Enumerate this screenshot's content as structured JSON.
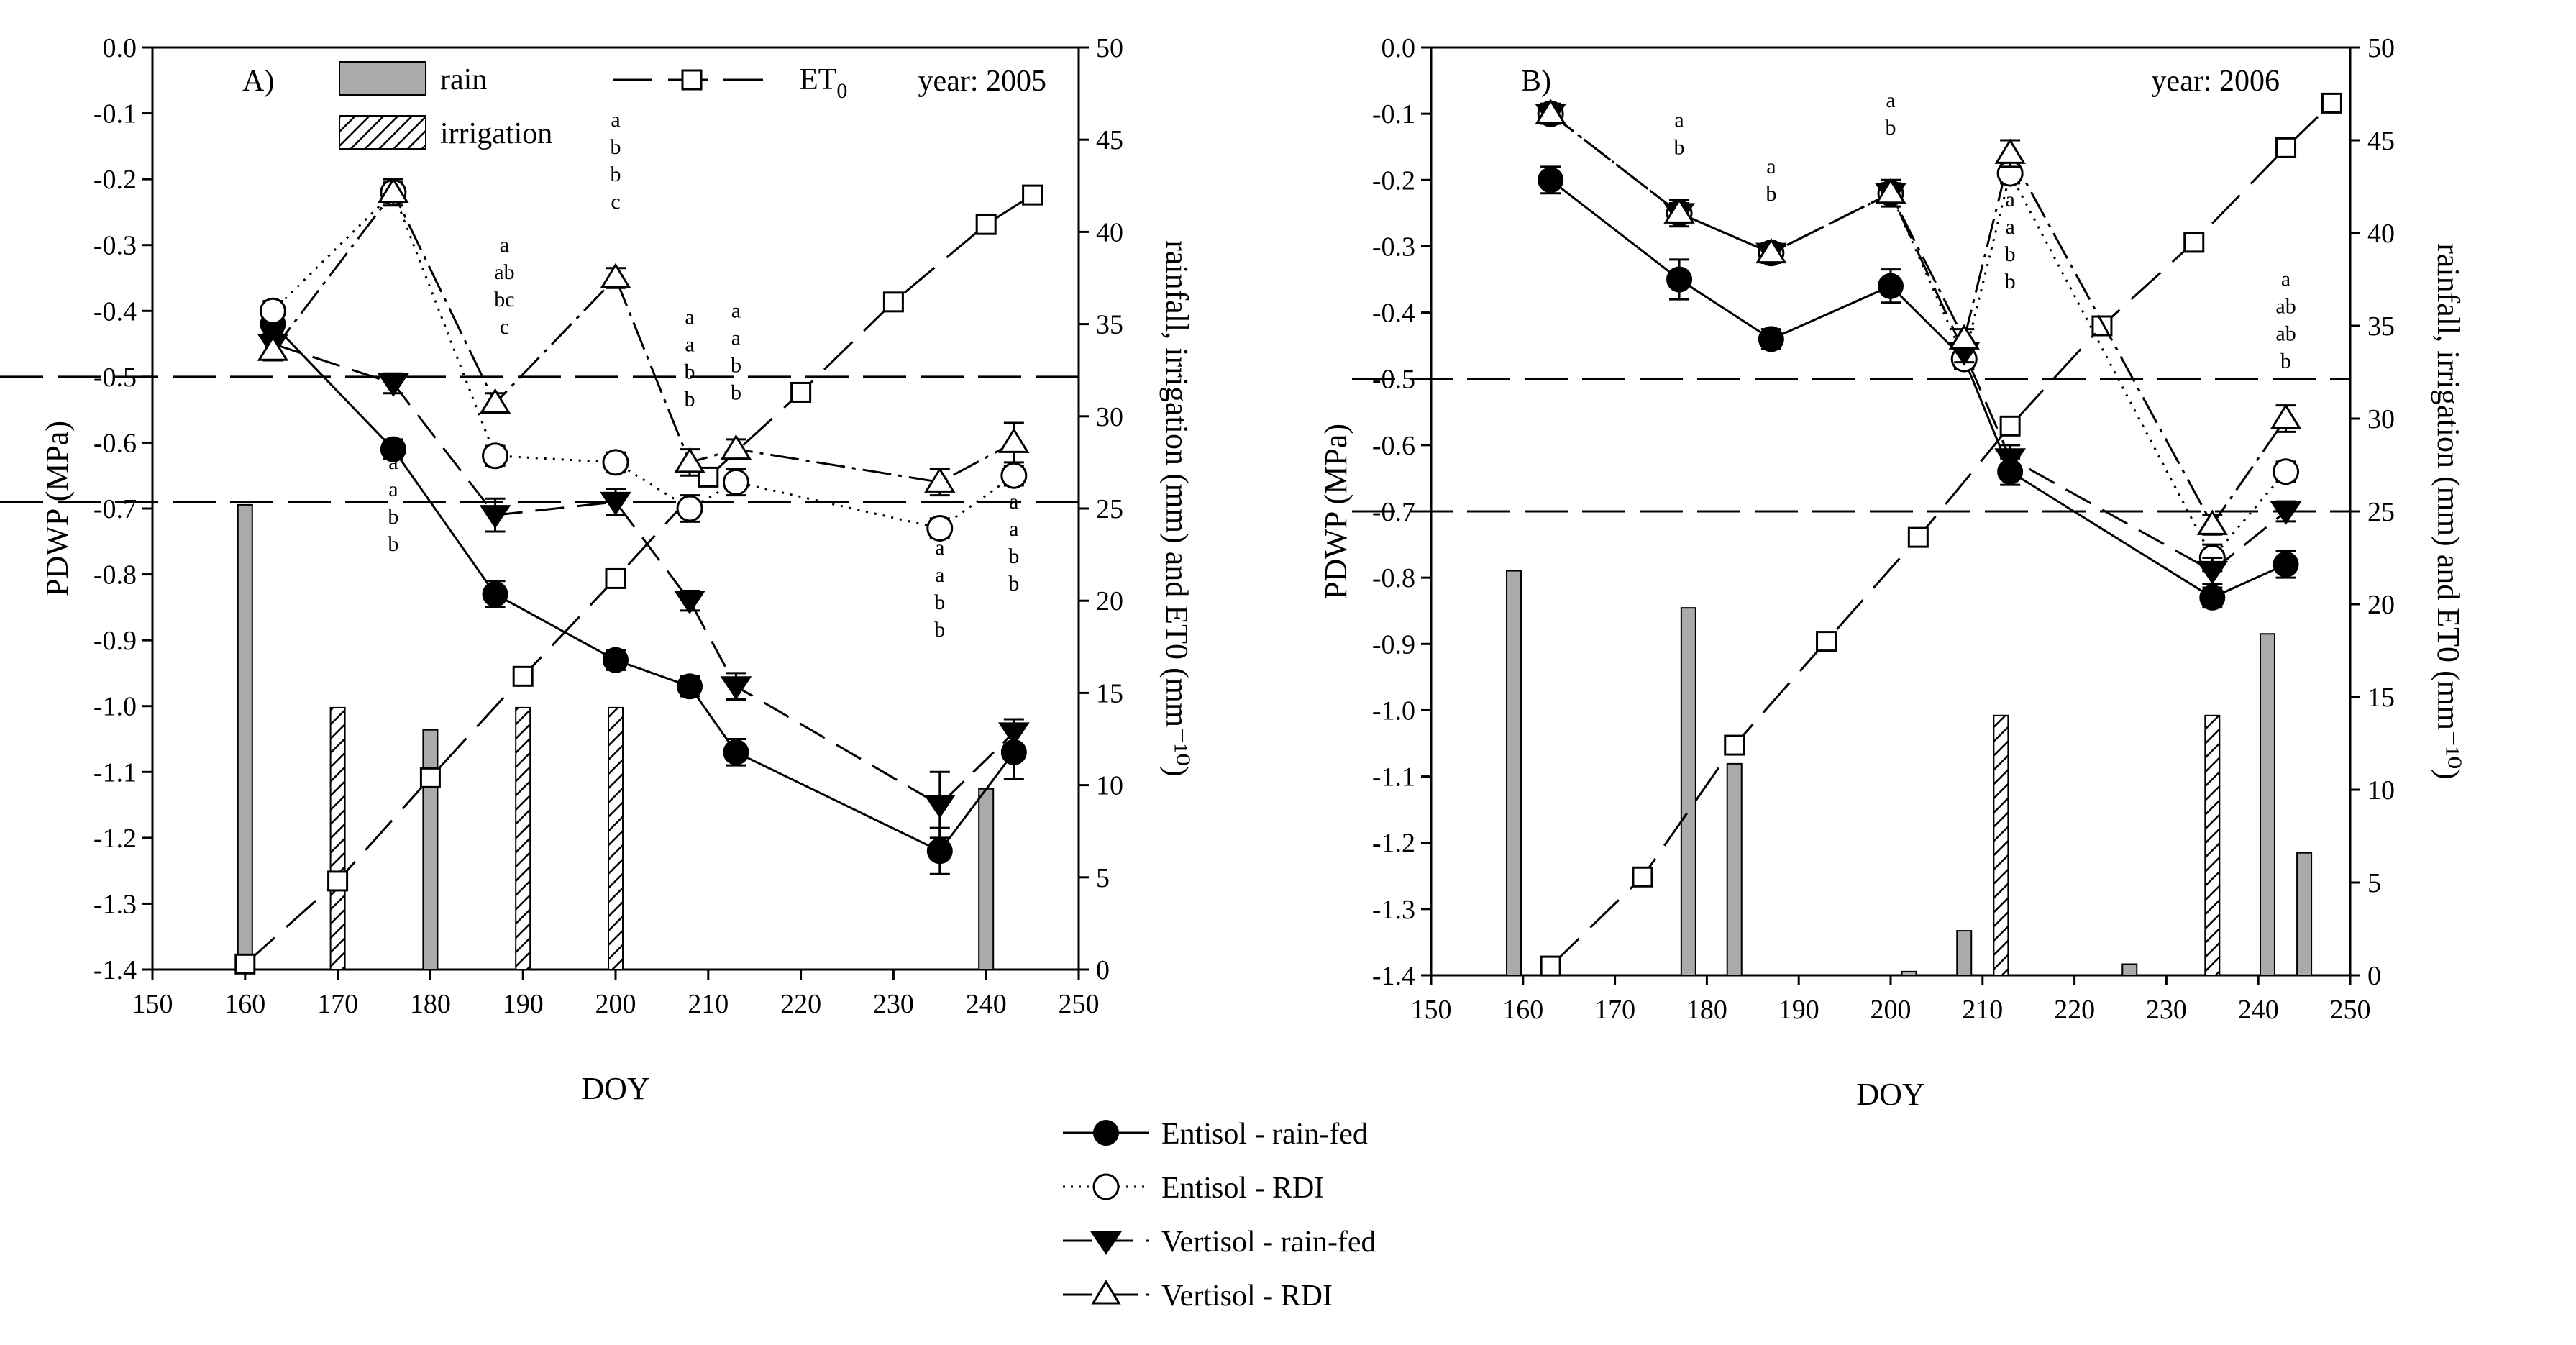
{
  "figure": {
    "legend_bottom": [
      {
        "key": "entisol_rainfed",
        "label": "Entisol - rain-fed"
      },
      {
        "key": "entisol_rdi",
        "label": "Entisol - RDI"
      },
      {
        "key": "vertisol_rainfed",
        "label": "Vertisol - rain-fed"
      },
      {
        "key": "vertisol_rdi",
        "label": "Vertisol - RDI"
      }
    ]
  },
  "chart_data": [
    {
      "type": "line",
      "panel_label": "A)",
      "year_label": "year: 2005",
      "xlabel": "DOY",
      "ylabel": "PDWP (MPa)",
      "y2label": "rainfall, irrigation (mm) and ET0 (mm⁻¹⁰)",
      "xlim": [
        150,
        250
      ],
      "xticks": [
        "150",
        "160",
        "170",
        "180",
        "190",
        "200",
        "210",
        "220",
        "230",
        "240",
        "250"
      ],
      "ylim": [
        -1.4,
        0.0
      ],
      "yticks": [
        "0.0",
        "-0.1",
        "-0.2",
        "-0.3",
        "-0.4",
        "-0.5",
        "-0.6",
        "-0.7",
        "-0.8",
        "-0.9",
        "-1.0",
        "-1.1",
        "-1.2",
        "-1.3",
        "-1.4"
      ],
      "y2lim": [
        0,
        50
      ],
      "y2ticks": [
        "0",
        "5",
        "10",
        "15",
        "20",
        "25",
        "30",
        "35",
        "40",
        "45",
        "50"
      ],
      "thresholds": [
        -0.5,
        -0.69
      ],
      "legend_inset": {
        "rain": "rain",
        "irrigation": "irrigation",
        "et0_main": "ET",
        "et0_sub": "0"
      },
      "rain": [
        {
          "doy": 160,
          "mm": 25.2
        },
        {
          "doy": 180,
          "mm": 13.0
        },
        {
          "doy": 240,
          "mm": 9.8
        }
      ],
      "irrigation": [
        {
          "doy": 170,
          "mm": 14.2
        },
        {
          "doy": 190,
          "mm": 14.2
        },
        {
          "doy": 200,
          "mm": 14.2
        }
      ],
      "et0": {
        "x": [
          160,
          170,
          180,
          190,
          200,
          210,
          220,
          230,
          240,
          245
        ],
        "y": [
          0.3,
          4.8,
          10.4,
          15.9,
          21.2,
          26.7,
          31.3,
          36.2,
          40.4,
          42.0
        ]
      },
      "series": [
        {
          "key": "entisol_rainfed",
          "name": "Entisol - rain-fed",
          "x": [
            163,
            176,
            187,
            200,
            208,
            213,
            235,
            243
          ],
          "y": [
            -0.42,
            -0.61,
            -0.83,
            -0.93,
            -0.97,
            -1.07,
            -1.22,
            -1.07
          ],
          "err": [
            0.02,
            0.015,
            0.02,
            0.015,
            0.015,
            0.02,
            0.035,
            0.04
          ]
        },
        {
          "key": "entisol_rdi",
          "name": "Entisol - RDI",
          "x": [
            163,
            176,
            187,
            200,
            208,
            213,
            235,
            243
          ],
          "y": [
            -0.4,
            -0.22,
            -0.62,
            -0.63,
            -0.7,
            -0.66,
            -0.73,
            -0.65
          ],
          "err": [
            0.015,
            0.015,
            0.015,
            0.015,
            0.02,
            0.02,
            0.015,
            0.015
          ]
        },
        {
          "key": "vertisol_rainfed",
          "name": "Vertisol - rain-fed",
          "x": [
            163,
            176,
            187,
            200,
            208,
            213,
            235,
            243
          ],
          "y": [
            -0.45,
            -0.51,
            -0.71,
            -0.69,
            -0.84,
            -0.97,
            -1.15,
            -1.04
          ],
          "err": [
            0.015,
            0.015,
            0.025,
            0.02,
            0.015,
            0.02,
            0.05,
            0.02
          ]
        },
        {
          "key": "vertisol_rdi",
          "name": "Vertisol - RDI",
          "x": [
            163,
            176,
            187,
            200,
            208,
            213,
            235,
            243
          ],
          "y": [
            -0.46,
            -0.22,
            -0.54,
            -0.35,
            -0.63,
            -0.61,
            -0.66,
            -0.6
          ],
          "err": [
            0.015,
            0.02,
            0.015,
            0.015,
            0.02,
            0.015,
            0.02,
            0.03
          ]
        }
      ],
      "sig_letters": [
        {
          "doy": 176,
          "ytop": -0.64,
          "letters": [
            "a",
            "a",
            "b",
            "b"
          ]
        },
        {
          "doy": 188,
          "ytop": -0.31,
          "letters": [
            "a",
            "ab",
            "bc",
            "c"
          ]
        },
        {
          "doy": 200,
          "ytop": -0.12,
          "letters": [
            "a",
            "b",
            "b",
            "c"
          ]
        },
        {
          "doy": 208,
          "ytop": -0.42,
          "letters": [
            "a",
            "a",
            "b",
            "b"
          ]
        },
        {
          "doy": 213,
          "ytop": -0.41,
          "letters": [
            "a",
            "a",
            "b",
            "b"
          ]
        },
        {
          "doy": 235,
          "ytop": -0.77,
          "letters": [
            "a",
            "a",
            "b",
            "b"
          ]
        },
        {
          "doy": 243,
          "ytop": -0.7,
          "letters": [
            "a",
            "a",
            "b",
            "b"
          ]
        }
      ]
    },
    {
      "type": "line",
      "panel_label": "B)",
      "year_label": "year: 2006",
      "xlabel": "DOY",
      "ylabel": "PDWP (MPa)",
      "y2label": "rainfall, irrigation (mm) and ET0 (mm⁻¹⁰)",
      "xlim": [
        150,
        250
      ],
      "xticks": [
        "150",
        "160",
        "170",
        "180",
        "190",
        "200",
        "210",
        "220",
        "230",
        "240",
        "250"
      ],
      "ylim": [
        -1.4,
        0.0
      ],
      "yticks": [
        "0.0",
        "-0.1",
        "-0.2",
        "-0.3",
        "-0.4",
        "-0.5",
        "-0.6",
        "-0.7",
        "-0.8",
        "-0.9",
        "-1.0",
        "-1.1",
        "-1.2",
        "-1.3",
        "-1.4"
      ],
      "y2lim": [
        0,
        50
      ],
      "y2ticks": [
        "0",
        "5",
        "10",
        "15",
        "20",
        "25",
        "30",
        "35",
        "40",
        "45",
        "50"
      ],
      "thresholds": [
        -0.5,
        -0.7
      ],
      "rain": [
        {
          "doy": 159,
          "mm": 21.8
        },
        {
          "doy": 178,
          "mm": 19.8
        },
        {
          "doy": 183,
          "mm": 11.4
        },
        {
          "doy": 202,
          "mm": 0.2
        },
        {
          "doy": 208,
          "mm": 2.4
        },
        {
          "doy": 226,
          "mm": 0.6
        },
        {
          "doy": 241,
          "mm": 18.4
        },
        {
          "doy": 245,
          "mm": 6.6
        }
      ],
      "irrigation": [
        {
          "doy": 212,
          "mm": 14.0
        },
        {
          "doy": 235,
          "mm": 14.0
        }
      ],
      "et0": {
        "x": [
          163,
          173,
          183,
          193,
          203,
          213,
          223,
          233,
          243,
          248
        ],
        "y": [
          0.5,
          5.3,
          12.4,
          18.0,
          23.6,
          29.6,
          35.0,
          39.5,
          44.6,
          47.0
        ]
      },
      "series": [
        {
          "key": "entisol_rainfed",
          "name": "Entisol - rain-fed",
          "x": [
            163,
            177,
            187,
            200,
            208,
            213,
            235,
            243
          ],
          "y": [
            -0.2,
            -0.35,
            -0.44,
            -0.36,
            -0.47,
            -0.64,
            -0.83,
            -0.78
          ],
          "err": [
            0.02,
            0.03,
            0.015,
            0.025,
            0.015,
            0.02,
            0.015,
            0.02
          ]
        },
        {
          "key": "entisol_rdi",
          "name": "Entisol - RDI",
          "x": [
            163,
            177,
            187,
            200,
            208,
            213,
            235,
            243
          ],
          "y": [
            -0.1,
            -0.25,
            -0.31,
            -0.22,
            -0.47,
            -0.19,
            -0.77,
            -0.64
          ],
          "err": [
            0.015,
            0.015,
            0.015,
            0.015,
            0.015,
            0.015,
            0.02,
            0.015
          ]
        },
        {
          "key": "vertisol_rainfed",
          "name": "Vertisol - rain-fed",
          "x": [
            163,
            177,
            187,
            200,
            208,
            213,
            235,
            243
          ],
          "y": [
            -0.1,
            -0.25,
            -0.31,
            -0.22,
            -0.46,
            -0.62,
            -0.79,
            -0.7
          ],
          "err": [
            0.015,
            0.02,
            0.015,
            0.02,
            0.015,
            0.02,
            0.02,
            0.015
          ]
        },
        {
          "key": "vertisol_rdi",
          "name": "Vertisol - RDI",
          "x": [
            163,
            177,
            187,
            200,
            208,
            213,
            235,
            243
          ],
          "y": [
            -0.1,
            -0.25,
            -0.31,
            -0.22,
            -0.44,
            -0.16,
            -0.72,
            -0.56
          ],
          "err": [
            0.015,
            0.015,
            0.015,
            0.015,
            0.015,
            0.02,
            0.015,
            0.02
          ]
        }
      ],
      "sig_letters": [
        {
          "doy": 177,
          "ytop": -0.12,
          "letters": [
            "a",
            "b"
          ]
        },
        {
          "doy": 187,
          "ytop": -0.19,
          "letters": [
            "a",
            "b"
          ]
        },
        {
          "doy": 200,
          "ytop": -0.09,
          "letters": [
            "a",
            "b"
          ]
        },
        {
          "doy": 213,
          "ytop": -0.24,
          "letters": [
            "a",
            "a",
            "b",
            "b"
          ]
        },
        {
          "doy": 243,
          "ytop": -0.36,
          "letters": [
            "a",
            "ab",
            "ab",
            "b"
          ]
        }
      ]
    }
  ]
}
